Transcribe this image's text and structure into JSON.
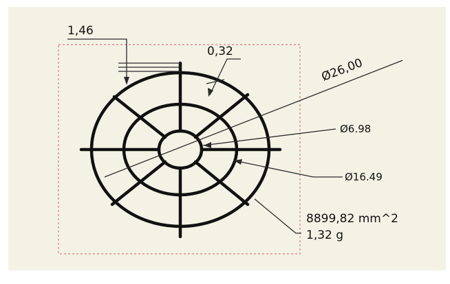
{
  "colors": {
    "backdrop": "#ffffff",
    "panel": "#f3f2e5",
    "part_stroke": "#111111",
    "leader": "#2a2a2a",
    "boundary": "#e07a7a"
  },
  "dimensions": {
    "spoke_width": "1,46",
    "ring_width": "0,32",
    "outer_diameter": "Ø26,00",
    "inner_diameter": "Ø6.98",
    "middle_diameter": "Ø16.49"
  },
  "properties": {
    "area": "8899,82 mm^2",
    "mass": "1,32 g"
  }
}
